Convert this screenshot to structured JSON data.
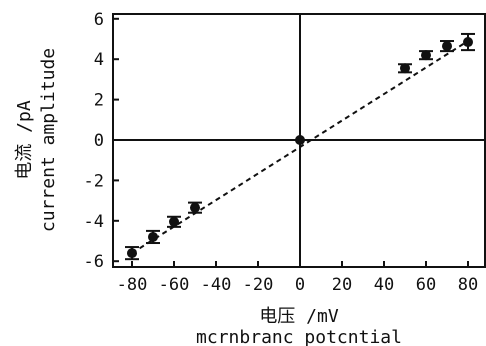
{
  "chart_data": {
    "type": "scatter",
    "xlabel_cn": "电压 /mV",
    "xlabel_en": "mcrnbranc potcntial",
    "ylabel_cn": "电流 /pA",
    "ylabel_en": "current amplitude",
    "xlim": [
      -85,
      85
    ],
    "ylim": [
      -6.4,
      6.2
    ],
    "xticks": [
      -80,
      -60,
      -40,
      -20,
      0,
      20,
      40,
      60,
      80
    ],
    "xtick_labels": [
      "-80",
      "-60",
      "-40",
      "-20",
      "0",
      "20",
      "40",
      "60",
      "80"
    ],
    "yticks": [
      6,
      4,
      2,
      0,
      -2,
      -4,
      -6
    ],
    "ytick_labels": [
      "6",
      "4",
      "2",
      "0",
      "-2",
      "-4",
      "-6"
    ],
    "grid": false,
    "fit_line": {
      "style": "dashed",
      "x": [
        -80,
        80
      ],
      "y": [
        -5.6,
        4.9
      ]
    },
    "series": [
      {
        "x": [
          -80,
          -70,
          -60,
          -50,
          0,
          50,
          60,
          70,
          80
        ],
        "y": [
          -5.6,
          -4.8,
          -4.05,
          -3.35,
          0.0,
          3.55,
          4.2,
          4.65,
          4.85
        ],
        "err": [
          0.3,
          0.3,
          0.25,
          0.25,
          0.0,
          0.2,
          0.2,
          0.25,
          0.4
        ]
      }
    ]
  }
}
